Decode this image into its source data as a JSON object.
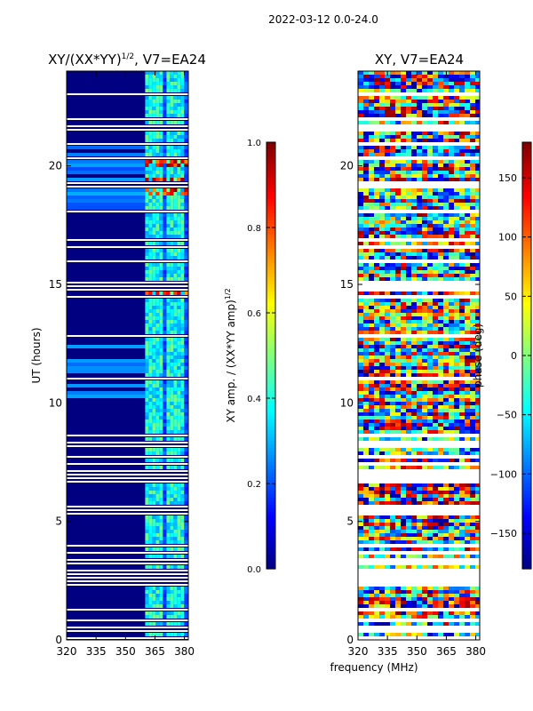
{
  "chart_data": [
    {
      "type": "heatmap",
      "suptitle": "2022-03-12 0.0-24.0",
      "title": "XY/(XX*YY)",
      "title_exp": "1/2",
      "title_suffix": ", V7=EA24",
      "xlabel": "",
      "ylabel": "UT (hours)",
      "xlim": [
        320,
        382
      ],
      "ylim": [
        0,
        24
      ],
      "x_ticks": [
        320,
        335,
        350,
        365,
        380
      ],
      "y_ticks": [
        0,
        5,
        10,
        15,
        20
      ],
      "colorbar": {
        "label": "XY amp. / (XX*YY amp)",
        "label_exp": "1/2",
        "range": [
          0.0,
          1.0
        ],
        "ticks": [
          0.0,
          0.2,
          0.4,
          0.6,
          0.8,
          1.0
        ],
        "tick_labels": [
          "0.0",
          "0.2",
          "0.4",
          "0.6",
          "0.8",
          "1.0"
        ]
      },
      "colormap": "jet",
      "features": {
        "active_band_mhz": [
          360,
          380
        ],
        "background_value": 0.0,
        "band_typical_value": 0.35,
        "hot_rows_ut_hours": [
          14.8,
          19.3,
          19.0,
          20.1
        ]
      }
    },
    {
      "type": "heatmap",
      "title": "XY, V7=EA24",
      "xlabel": "frequency (MHz)",
      "ylabel": "",
      "xlim": [
        320,
        382
      ],
      "ylim": [
        0,
        24
      ],
      "x_ticks": [
        320,
        335,
        350,
        365,
        380
      ],
      "y_ticks": [
        0,
        5,
        10,
        15,
        20
      ],
      "colorbar": {
        "label": "phase (deg)",
        "range": [
          -180,
          180
        ],
        "ticks": [
          -150,
          -100,
          -50,
          0,
          50,
          100,
          150
        ],
        "tick_labels": [
          "−150",
          "−100",
          "−50",
          "0",
          "50",
          "100",
          "150"
        ]
      },
      "colormap": "jet"
    }
  ]
}
